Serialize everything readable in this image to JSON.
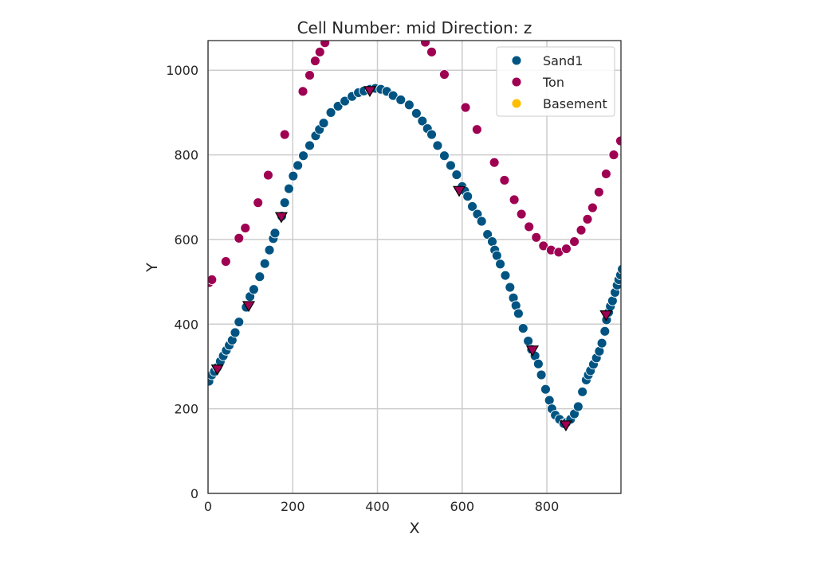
{
  "chart_data": {
    "type": "scatter",
    "title": "Cell Number: mid Direction: z",
    "xlabel": "X",
    "ylabel": "Y",
    "xlim": [
      0,
      975
    ],
    "ylim": [
      0,
      1070
    ],
    "xticks": [
      0,
      200,
      400,
      600,
      800
    ],
    "yticks": [
      0,
      200,
      400,
      600,
      800,
      1000
    ],
    "grid": true,
    "legend_position": "top-right",
    "colors": {
      "Sand1": "#015482",
      "Ton": "#9f0052",
      "Basement": "#ffbe00",
      "grid": "#cccccc",
      "axes": "#262626"
    },
    "series": [
      {
        "name": "Sand1",
        "points": [
          [
            2,
            265
          ],
          [
            9,
            280
          ],
          [
            15,
            288
          ],
          [
            22,
            298
          ],
          [
            29,
            312
          ],
          [
            36,
            325
          ],
          [
            43,
            338
          ],
          [
            50,
            350
          ],
          [
            57,
            362
          ],
          [
            64,
            380
          ],
          [
            73,
            405
          ],
          [
            90,
            440
          ],
          [
            99,
            465
          ],
          [
            108,
            482
          ],
          [
            122,
            512
          ],
          [
            134,
            543
          ],
          [
            145,
            575
          ],
          [
            154,
            602
          ],
          [
            158,
            615
          ],
          [
            174,
            655
          ],
          [
            181,
            687
          ],
          [
            191,
            720
          ],
          [
            201,
            750
          ],
          [
            212,
            775
          ],
          [
            225,
            798
          ],
          [
            240,
            822
          ],
          [
            254,
            845
          ],
          [
            263,
            860
          ],
          [
            273,
            875
          ],
          [
            290,
            900
          ],
          [
            307,
            915
          ],
          [
            323,
            927
          ],
          [
            340,
            938
          ],
          [
            355,
            947
          ],
          [
            368,
            951
          ],
          [
            383,
            955
          ],
          [
            395,
            957
          ],
          [
            408,
            955
          ],
          [
            422,
            950
          ],
          [
            437,
            940
          ],
          [
            455,
            930
          ],
          [
            475,
            918
          ],
          [
            492,
            898
          ],
          [
            506,
            880
          ],
          [
            518,
            862
          ],
          [
            528,
            848
          ],
          [
            542,
            822
          ],
          [
            558,
            798
          ],
          [
            573,
            775
          ],
          [
            587,
            753
          ],
          [
            600,
            725
          ],
          [
            606,
            715
          ],
          [
            613,
            702
          ],
          [
            624,
            678
          ],
          [
            636,
            660
          ],
          [
            646,
            643
          ],
          [
            660,
            612
          ],
          [
            671,
            595
          ],
          [
            677,
            575
          ],
          [
            682,
            562
          ],
          [
            690,
            542
          ],
          [
            702,
            515
          ],
          [
            713,
            487
          ],
          [
            721,
            462
          ],
          [
            727,
            444
          ],
          [
            733,
            425
          ],
          [
            744,
            390
          ],
          [
            756,
            360
          ],
          [
            764,
            340
          ],
          [
            772,
            325
          ],
          [
            780,
            306
          ],
          [
            787,
            280
          ],
          [
            797,
            246
          ],
          [
            806,
            220
          ],
          [
            812,
            200
          ],
          [
            820,
            185
          ],
          [
            830,
            175
          ],
          [
            840,
            165
          ],
          [
            847,
            168
          ],
          [
            856,
            175
          ],
          [
            865,
            188
          ],
          [
            874,
            205
          ],
          [
            884,
            240
          ],
          [
            893,
            268
          ],
          [
            898,
            280
          ],
          [
            903,
            290
          ],
          [
            910,
            305
          ],
          [
            917,
            320
          ],
          [
            924,
            336
          ],
          [
            930,
            355
          ],
          [
            937,
            383
          ],
          [
            941,
            410
          ],
          [
            946,
            428
          ],
          [
            950,
            442
          ],
          [
            955,
            455
          ],
          [
            961,
            475
          ],
          [
            966,
            492
          ],
          [
            970,
            505
          ],
          [
            974,
            516
          ],
          [
            978,
            530
          ]
        ]
      },
      {
        "name": "Ton",
        "points": [
          [
            2,
            498
          ],
          [
            9,
            505
          ],
          [
            42,
            548
          ],
          [
            73,
            603
          ],
          [
            88,
            627
          ],
          [
            118,
            687
          ],
          [
            142,
            752
          ],
          [
            181,
            848
          ],
          [
            224,
            950
          ],
          [
            240,
            988
          ],
          [
            253,
            1022
          ],
          [
            264,
            1043
          ],
          [
            276,
            1065
          ],
          [
            513,
            1066
          ],
          [
            528,
            1043
          ],
          [
            558,
            990
          ],
          [
            608,
            912
          ],
          [
            635,
            860
          ],
          [
            676,
            782
          ],
          [
            700,
            740
          ],
          [
            723,
            694
          ],
          [
            740,
            660
          ],
          [
            758,
            630
          ],
          [
            775,
            605
          ],
          [
            792,
            585
          ],
          [
            810,
            575
          ],
          [
            828,
            570
          ],
          [
            846,
            578
          ],
          [
            865,
            595
          ],
          [
            881,
            622
          ],
          [
            896,
            648
          ],
          [
            908,
            675
          ],
          [
            923,
            712
          ],
          [
            940,
            755
          ],
          [
            958,
            800
          ],
          [
            974,
            833
          ]
        ]
      },
      {
        "name": "Basement",
        "points": []
      }
    ],
    "markers": {
      "shape": "triangle-down",
      "points": [
        [
          22,
          292
        ],
        [
          96,
          442
        ],
        [
          173,
          652
        ],
        [
          382,
          950
        ],
        [
          593,
          714
        ],
        [
          766,
          337
        ],
        [
          845,
          160
        ],
        [
          940,
          420
        ]
      ]
    }
  }
}
